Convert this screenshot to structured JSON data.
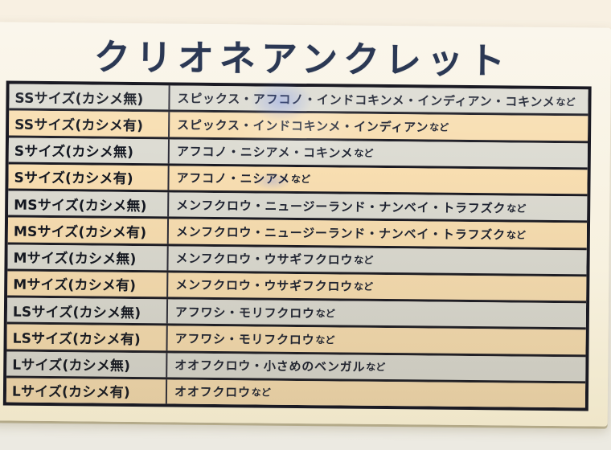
{
  "title": "クリオネアンクレット",
  "table": {
    "rows": [
      {
        "label": "SSサイズ(カシメ無)",
        "species": "スピックス・アフコノ・インドコキンメ・インディアン・コキンメ",
        "suffix": "など",
        "variant": "gray"
      },
      {
        "label": "SSサイズ(カシメ有)",
        "species": "スピックス・インドコキンメ・インディアン",
        "suffix": "など",
        "variant": "peach"
      },
      {
        "label": "Sサイズ(カシメ無)",
        "species": "アフコノ・ニシアメ・コキンメ",
        "suffix": "など",
        "variant": "gray"
      },
      {
        "label": "Sサイズ(カシメ有)",
        "species": "アフコノ・ニシアメ",
        "suffix": "など",
        "variant": "peach"
      },
      {
        "label": "MSサイズ(カシメ無)",
        "species": "メンフクロウ・ニュージーランド・ナンベイ・トラフズク",
        "suffix": "など",
        "variant": "gray"
      },
      {
        "label": "MSサイズ(カシメ有)",
        "species": "メンフクロウ・ニュージーランド・ナンベイ・トラフズク",
        "suffix": "など",
        "variant": "peach"
      },
      {
        "label": "Mサイズ(カシメ無)",
        "species": "メンフクロウ・ウサギフクロウ",
        "suffix": "など",
        "variant": "gray"
      },
      {
        "label": "Mサイズ(カシメ有)",
        "species": "メンフクロウ・ウサギフクロウ",
        "suffix": "など",
        "variant": "peach"
      },
      {
        "label": "LSサイズ(カシメ無)",
        "species": "アフワシ・モリフクロウ",
        "suffix": "など",
        "variant": "gray"
      },
      {
        "label": "LSサイズ(カシメ有)",
        "species": "アフワシ・モリフクロウ",
        "suffix": "など",
        "variant": "peach"
      },
      {
        "label": "Lサイズ(カシメ無)",
        "species": "オオフクロウ・小さめのベンガル",
        "suffix": "など",
        "variant": "gray"
      },
      {
        "label": "Lサイズ(カシメ有)",
        "species": "オオフクロウ",
        "suffix": "など",
        "variant": "peach"
      }
    ]
  },
  "colors": {
    "photo_bg_top": "#f8f0e2",
    "photo_bg_mid": "#f3eee3",
    "photo_bg_bottom": "#eceae2",
    "sign_top": "#faf6ec",
    "sign_mid": "#f7f1df",
    "sign_bottom": "#efe6c9",
    "table_border": "#1a1a23",
    "col_divider": "#2a2a36",
    "row_gray": "#dcdbd2",
    "row_peach": "#f8deb1",
    "text_left": "#11151f",
    "text_right": "#1c2130",
    "title_color": "#2b3854"
  }
}
